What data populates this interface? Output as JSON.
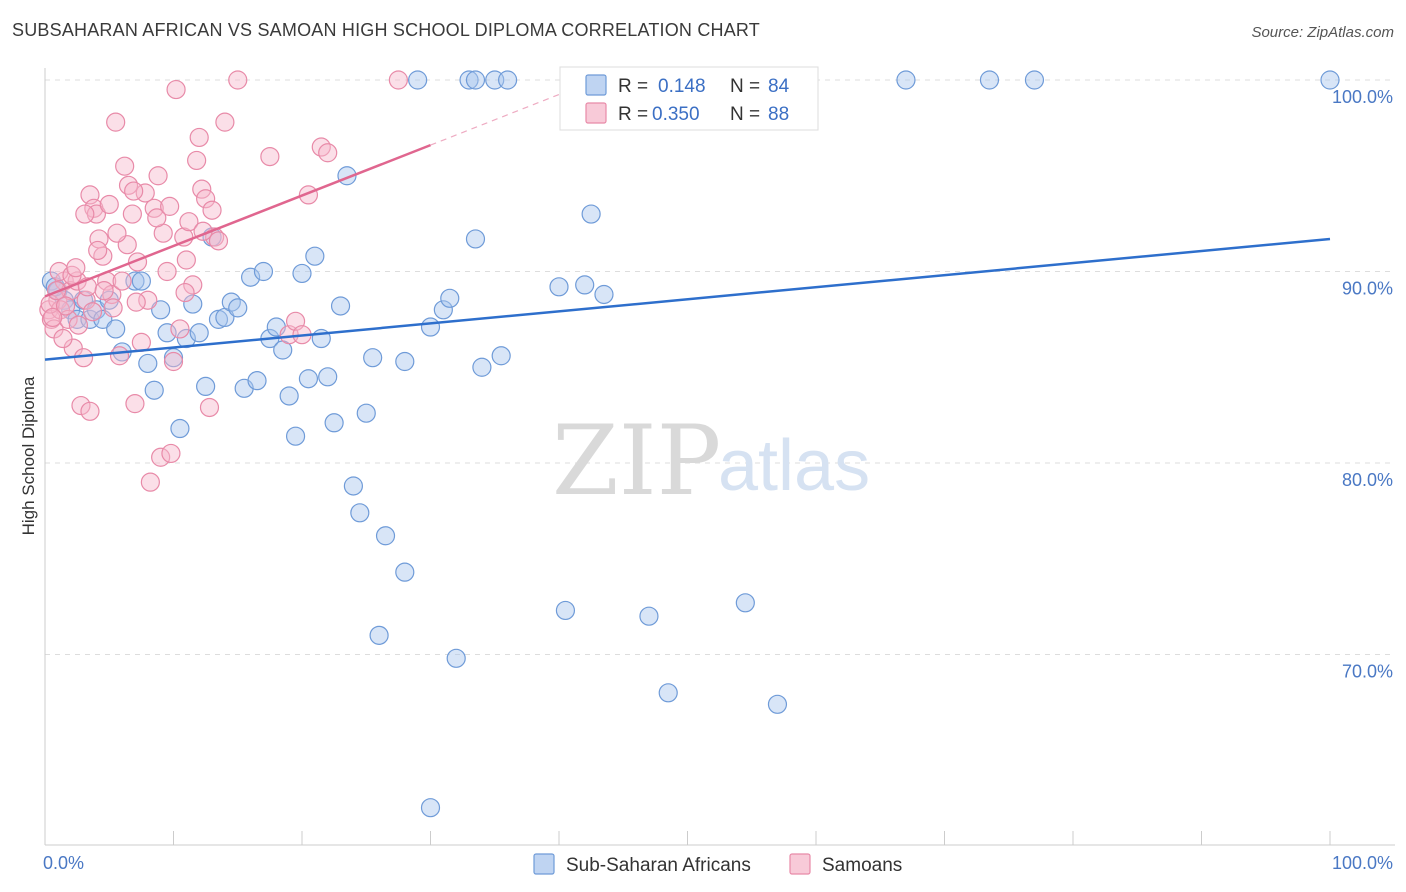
{
  "title": "SUBSAHARAN AFRICAN VS SAMOAN HIGH SCHOOL DIPLOMA CORRELATION CHART",
  "source": "Source: ZipAtlas.com",
  "watermark": {
    "zip": "ZIP",
    "atlas": "atlas"
  },
  "colors": {
    "blue_fill": "#a9c6ee",
    "blue_stroke": "#6f9bd8",
    "blue_line": "#2e6fcc",
    "pink_fill": "#f6b8cb",
    "pink_stroke": "#e88aa8",
    "pink_line": "#e0668f",
    "grid": "#dddddd",
    "tick_label": "#4a78c4"
  },
  "chart_data": {
    "type": "scatter",
    "ylabel": "High School Diploma",
    "xlim": [
      0,
      100
    ],
    "ylim": [
      60.5,
      101.5
    ],
    "x_tick_labels": [
      "0.0%",
      "100.0%"
    ],
    "y_ticks": [
      70,
      80,
      90,
      100
    ],
    "y_tick_labels": [
      "70.0%",
      "80.0%",
      "90.0%",
      "100.0%"
    ],
    "grid": true,
    "legend_placement": "top-center",
    "legend": [
      {
        "series": "blue",
        "r_label": "R =",
        "r_value": "0.148",
        "n_label": "N =",
        "n_value": "84"
      },
      {
        "series": "pink",
        "r_label": "R =",
        "r_value": "0.350",
        "n_label": "N =",
        "n_value": "88"
      }
    ],
    "bottom_legend": [
      "Sub-Saharan Africans",
      "Samoans"
    ],
    "series": [
      {
        "name": "Sub-Saharan Africans",
        "color": "blue",
        "trend": {
          "x0": 0,
          "y0": 85.4,
          "x1": 100,
          "y1": 91.7
        },
        "points": [
          [
            0.5,
            89.5
          ],
          [
            1,
            89
          ],
          [
            1.5,
            88.5
          ],
          [
            2,
            88
          ],
          [
            2.5,
            87.5
          ],
          [
            3,
            88.5
          ],
          [
            3.5,
            87.5
          ],
          [
            4,
            88
          ],
          [
            4.5,
            87.5
          ],
          [
            5,
            88.5
          ],
          [
            5.5,
            87
          ],
          [
            6,
            85.8
          ],
          [
            7,
            89.5
          ],
          [
            7.5,
            89.5
          ],
          [
            8,
            85.2
          ],
          [
            8.5,
            83.8
          ],
          [
            9,
            88
          ],
          [
            9.5,
            86.8
          ],
          [
            10,
            85.5
          ],
          [
            10.5,
            81.8
          ],
          [
            11,
            86.5
          ],
          [
            11.5,
            88.3
          ],
          [
            12,
            86.8
          ],
          [
            12.5,
            84
          ],
          [
            13,
            91.8
          ],
          [
            13.5,
            87.5
          ],
          [
            14,
            87.6
          ],
          [
            14.5,
            88.4
          ],
          [
            15,
            88.1
          ],
          [
            15.5,
            83.9
          ],
          [
            16,
            89.7
          ],
          [
            16.5,
            84.3
          ],
          [
            17,
            90
          ],
          [
            17.5,
            86.5
          ],
          [
            18,
            87.1
          ],
          [
            18.5,
            85.9
          ],
          [
            19,
            83.5
          ],
          [
            19.5,
            81.4
          ],
          [
            20,
            89.9
          ],
          [
            20.5,
            84.4
          ],
          [
            21,
            90.8
          ],
          [
            21.5,
            86.5
          ],
          [
            22,
            84.5
          ],
          [
            22.5,
            82.1
          ],
          [
            23,
            88.2
          ],
          [
            23.5,
            95
          ],
          [
            24,
            78.8
          ],
          [
            24.5,
            77.4
          ],
          [
            25,
            82.6
          ],
          [
            25.5,
            85.5
          ],
          [
            26,
            71
          ],
          [
            26.5,
            76.2
          ],
          [
            28,
            85.3
          ],
          [
            28,
            74.3
          ],
          [
            29,
            100
          ],
          [
            30,
            62
          ],
          [
            30,
            87.1
          ],
          [
            31,
            88
          ],
          [
            31.5,
            88.6
          ],
          [
            32,
            69.8
          ],
          [
            33,
            100
          ],
          [
            33.5,
            100
          ],
          [
            33.5,
            91.7
          ],
          [
            34,
            85
          ],
          [
            35,
            100
          ],
          [
            35.5,
            85.6
          ],
          [
            36,
            100
          ],
          [
            40,
            89.2
          ],
          [
            40.5,
            72.3
          ],
          [
            42,
            89.3
          ],
          [
            42.5,
            93
          ],
          [
            43.5,
            88.8
          ],
          [
            46,
            100
          ],
          [
            47,
            72
          ],
          [
            48.5,
            68
          ],
          [
            54,
            100
          ],
          [
            54.5,
            72.7
          ],
          [
            55,
            99.5
          ],
          [
            57,
            67.4
          ],
          [
            67,
            100
          ],
          [
            73.5,
            100
          ],
          [
            77,
            100
          ],
          [
            100,
            100
          ],
          [
            0.8,
            89.2
          ]
        ]
      },
      {
        "name": "Samoans",
        "color": "pink",
        "trend": {
          "x0": 0,
          "y0": 88.7,
          "x1": 30,
          "y1": 96.6
        },
        "trend_extension": {
          "x0": 30,
          "y0": 96.6,
          "x1": 44,
          "y1": 100.3
        },
        "points": [
          [
            0.3,
            88
          ],
          [
            0.5,
            87.5
          ],
          [
            0.7,
            87
          ],
          [
            1,
            88.5
          ],
          [
            1.2,
            88
          ],
          [
            1.5,
            89.5
          ],
          [
            1.8,
            87.5
          ],
          [
            2,
            89
          ],
          [
            2.2,
            86
          ],
          [
            2.5,
            89.5
          ],
          [
            2.8,
            83
          ],
          [
            3,
            85.5
          ],
          [
            3.2,
            88.5
          ],
          [
            3.5,
            82.7
          ],
          [
            3.5,
            94
          ],
          [
            3.8,
            93.3
          ],
          [
            4,
            93
          ],
          [
            4.2,
            91.7
          ],
          [
            4.5,
            90.8
          ],
          [
            4.8,
            89.5
          ],
          [
            5,
            93.5
          ],
          [
            5.2,
            88.8
          ],
          [
            5.5,
            97.8
          ],
          [
            5.8,
            85.6
          ],
          [
            6,
            89.5
          ],
          [
            6.2,
            95.5
          ],
          [
            6.5,
            94.5
          ],
          [
            6.8,
            93
          ],
          [
            7,
            83.1
          ],
          [
            7.2,
            90.5
          ],
          [
            7.5,
            86.3
          ],
          [
            7.8,
            94.1
          ],
          [
            8,
            88.5
          ],
          [
            8.2,
            79
          ],
          [
            8.5,
            93.3
          ],
          [
            8.8,
            95
          ],
          [
            9,
            80.3
          ],
          [
            9.2,
            92
          ],
          [
            9.5,
            90
          ],
          [
            9.8,
            80.5
          ],
          [
            10,
            85.3
          ],
          [
            10.2,
            99.5
          ],
          [
            10.5,
            87
          ],
          [
            10.8,
            91.8
          ],
          [
            11,
            90.6
          ],
          [
            11.2,
            92.6
          ],
          [
            11.5,
            89.3
          ],
          [
            11.8,
            95.8
          ],
          [
            12,
            97
          ],
          [
            12.2,
            94.3
          ],
          [
            12.5,
            93.8
          ],
          [
            12.8,
            82.9
          ],
          [
            13,
            93.2
          ],
          [
            13.2,
            91.8
          ],
          [
            13.5,
            91.6
          ],
          [
            14,
            97.8
          ],
          [
            15,
            100
          ],
          [
            17.5,
            96
          ],
          [
            19,
            86.7
          ],
          [
            19.5,
            87.4
          ],
          [
            20,
            86.7
          ],
          [
            20.5,
            94
          ],
          [
            21.5,
            96.5
          ],
          [
            22,
            96.2
          ],
          [
            27.5,
            100
          ],
          [
            0.4,
            88.3
          ],
          [
            0.9,
            89
          ],
          [
            1.6,
            88.2
          ],
          [
            2.6,
            87.2
          ],
          [
            3.3,
            89.2
          ],
          [
            4.6,
            89
          ],
          [
            1.1,
            90
          ],
          [
            2.1,
            89.8
          ],
          [
            3.7,
            87.9
          ],
          [
            5.3,
            88.1
          ],
          [
            6.4,
            91.4
          ],
          [
            7.1,
            88.4
          ],
          [
            0.6,
            87.6
          ],
          [
            1.4,
            86.5
          ],
          [
            2.4,
            90.2
          ],
          [
            3.1,
            93
          ],
          [
            4.1,
            91.1
          ],
          [
            5.6,
            92
          ],
          [
            6.9,
            94.2
          ],
          [
            8.7,
            92.8
          ],
          [
            9.7,
            93.4
          ],
          [
            10.9,
            88.9
          ],
          [
            12.3,
            92.1
          ]
        ]
      }
    ]
  }
}
